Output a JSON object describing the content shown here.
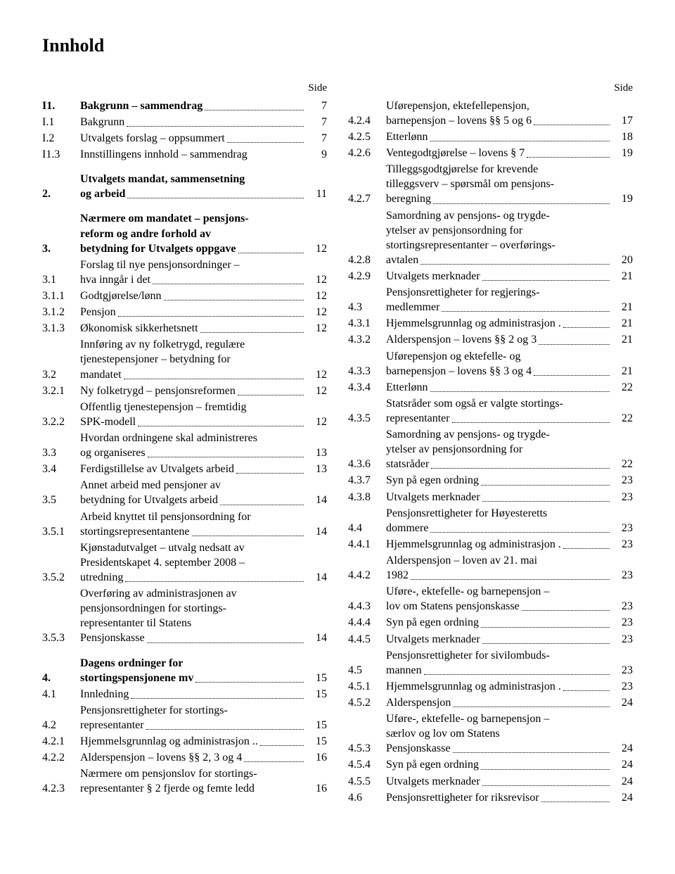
{
  "title": "Innhold",
  "sideLabel": "Side",
  "leftEntries": [
    {
      "num": "I1.",
      "text": [
        "Bakgrunn – sammendrag"
      ],
      "page": "7",
      "bold": true
    },
    {
      "num": "I.1",
      "text": [
        "Bakgrunn"
      ],
      "page": "7"
    },
    {
      "num": "I.2",
      "text": [
        "Utvalgets forslag – oppsummert"
      ],
      "page": "7"
    },
    {
      "num": "I1.3",
      "text": [
        "Innstillingens innhold – sammendrag"
      ],
      "page": "9",
      "nodots": true
    },
    {
      "spacer": true
    },
    {
      "num": "2.",
      "text": [
        "Utvalgets mandat, sammensetning",
        "og arbeid"
      ],
      "page": "11",
      "bold": true
    },
    {
      "spacer": true
    },
    {
      "num": "3.",
      "text": [
        "Nærmere om mandatet – pensjons-",
        "reform og andre forhold av",
        "betydning for Utvalgets oppgave"
      ],
      "page": "12",
      "bold": true
    },
    {
      "num": "3.1",
      "text": [
        "Forslag til nye pensjonsordninger –",
        "hva inngår i det"
      ],
      "page": "12"
    },
    {
      "num": "3.1.1",
      "text": [
        "Godtgjørelse/lønn"
      ],
      "page": "12"
    },
    {
      "num": "3.1.2",
      "text": [
        "Pensjon"
      ],
      "page": "12"
    },
    {
      "num": "3.1.3",
      "text": [
        "Økonomisk sikkerhetsnett"
      ],
      "page": "12"
    },
    {
      "num": "3.2",
      "text": [
        "Innføring av ny folketrygd, regulære",
        "tjenestepensjoner – betydning for",
        "mandatet"
      ],
      "page": "12"
    },
    {
      "num": "3.2.1",
      "text": [
        "Ny folketrygd – pensjonsreformen"
      ],
      "page": "12"
    },
    {
      "num": "3.2.2",
      "text": [
        "Offentlig tjenestepensjon – fremtidig",
        "SPK-modell"
      ],
      "page": "12"
    },
    {
      "num": "3.3",
      "text": [
        "Hvordan ordningene skal administreres",
        "og organiseres"
      ],
      "page": "13"
    },
    {
      "num": "3.4",
      "text": [
        "Ferdigstillelse av Utvalgets arbeid"
      ],
      "page": "13"
    },
    {
      "num": "3.5",
      "text": [
        "Annet arbeid med pensjoner av",
        "betydning for Utvalgets arbeid"
      ],
      "page": "14"
    },
    {
      "num": "3.5.1",
      "text": [
        "Arbeid knyttet til pensjonsordning for",
        "stortingsrepresentantene"
      ],
      "page": "14"
    },
    {
      "num": "3.5.2",
      "text": [
        "Kjønstadutvalget – utvalg nedsatt av",
        "Presidentskapet 4. september 2008 –",
        "utredning"
      ],
      "page": "14"
    },
    {
      "num": "3.5.3",
      "text": [
        "Overføring av administrasjonen av",
        "pensjonsordningen for stortings-",
        "representanter til Statens",
        "Pensjonskasse"
      ],
      "page": "14"
    },
    {
      "spacer": true
    },
    {
      "num": "4.",
      "text": [
        "Dagens ordninger for",
        "stortingspensjonene mv"
      ],
      "page": "15",
      "bold": true
    },
    {
      "num": "4.1",
      "text": [
        "Innledning"
      ],
      "page": "15"
    },
    {
      "num": "4.2",
      "text": [
        "Pensjonsrettigheter for stortings-",
        "representanter"
      ],
      "page": "15"
    },
    {
      "num": "4.2.1",
      "text": [
        "Hjemmelsgrunnlag og administrasjon"
      ],
      "page": "15",
      "sep": ".."
    },
    {
      "num": "4.2.2",
      "text": [
        "Alderspensjon – lovens §§ 2, 3 og 4"
      ],
      "page": "16"
    },
    {
      "num": "4.2.3",
      "text": [
        "Nærmere om pensjonslov for stortings-",
        "representanter § 2 fjerde og femte ledd"
      ],
      "page": "16",
      "nodots": true
    }
  ],
  "rightEntries": [
    {
      "num": "4.2.4",
      "text": [
        "Uførepensjon, ektefellepensjon,",
        "barnepensjon – lovens §§ 5 og 6"
      ],
      "page": "17"
    },
    {
      "num": "4.2.5",
      "text": [
        "Etterlønn"
      ],
      "page": "18"
    },
    {
      "num": "4.2.6",
      "text": [
        "Ventegodtgjørelse – lovens § 7"
      ],
      "page": "19"
    },
    {
      "num": "4.2.7",
      "text": [
        "Tilleggsgodtgjørelse for krevende",
        "tilleggsverv – spørsmål om pensjons-",
        "beregning"
      ],
      "page": "19"
    },
    {
      "num": "4.2.8",
      "text": [
        "Samordning av pensjons- og trygde-",
        "ytelser av pensjonsordning for",
        "stortingsrepresentanter – overførings-",
        "avtalen"
      ],
      "page": "20"
    },
    {
      "num": "4.2.9",
      "text": [
        "Utvalgets merknader"
      ],
      "page": "21"
    },
    {
      "num": "4.3",
      "text": [
        "Pensjonsrettigheter for regjerings-",
        "medlemmer"
      ],
      "page": "21"
    },
    {
      "num": "4.3.1",
      "text": [
        "Hjemmelsgrunnlag og administrasjon"
      ],
      "page": "21",
      "sep": "."
    },
    {
      "num": "4.3.2",
      "text": [
        "Alderspensjon – lovens §§ 2 og 3"
      ],
      "page": "21"
    },
    {
      "num": "4.3.3",
      "text": [
        "Uførepensjon og ektefelle- og",
        "barnepensjon – lovens §§ 3 og 4"
      ],
      "page": "21"
    },
    {
      "num": "4.3.4",
      "text": [
        "Etterlønn"
      ],
      "page": "22"
    },
    {
      "num": "4.3.5",
      "text": [
        "Statsråder som også er valgte stortings-",
        "representanter"
      ],
      "page": "22"
    },
    {
      "num": "4.3.6",
      "text": [
        "Samordning av pensjons- og trygde-",
        "ytelser av pensjonsordning for",
        "statsråder"
      ],
      "page": "22"
    },
    {
      "num": "4.3.7",
      "text": [
        "Syn på egen ordning"
      ],
      "page": "23"
    },
    {
      "num": "4.3.8",
      "text": [
        "Utvalgets merknader"
      ],
      "page": "23"
    },
    {
      "num": "4.4",
      "text": [
        "Pensjonsrettigheter for Høyesteretts",
        "dommere"
      ],
      "page": "23"
    },
    {
      "num": "4.4.1",
      "text": [
        "Hjemmelsgrunnlag og administrasjon"
      ],
      "page": "23",
      "sep": "."
    },
    {
      "num": "4.4.2",
      "text": [
        "Alderspensjon – loven av 21. mai",
        "1982"
      ],
      "page": "23"
    },
    {
      "num": "4.4.3",
      "text": [
        "Uføre-, ektefelle- og barnepensjon –",
        "lov om Statens pensjonskasse"
      ],
      "page": "23"
    },
    {
      "num": "4.4.4",
      "text": [
        "Syn på egen ordning"
      ],
      "page": "23"
    },
    {
      "num": "4.4.5",
      "text": [
        "Utvalgets merknader"
      ],
      "page": "23"
    },
    {
      "num": "4.5",
      "text": [
        "Pensjonsrettigheter for sivilombuds-",
        "mannen"
      ],
      "page": "23"
    },
    {
      "num": "4.5.1",
      "text": [
        "Hjemmelsgrunnlag og administrasjon"
      ],
      "page": "23",
      "sep": "."
    },
    {
      "num": "4.5.2",
      "text": [
        "Alderspensjon"
      ],
      "page": "24"
    },
    {
      "num": "4.5.3",
      "text": [
        "Uføre-, ektefelle- og barnepensjon –",
        "særlov og lov om Statens",
        "Pensjonskasse"
      ],
      "page": "24"
    },
    {
      "num": "4.5.4",
      "text": [
        "Syn på egen ordning"
      ],
      "page": "24"
    },
    {
      "num": "4.5.5",
      "text": [
        "Utvalgets merknader"
      ],
      "page": "24"
    },
    {
      "num": "4.6",
      "text": [
        "Pensjonsrettigheter for riksrevisor"
      ],
      "page": "24"
    }
  ]
}
